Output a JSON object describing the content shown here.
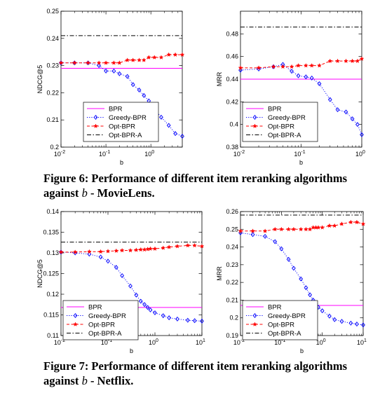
{
  "chart_data": [
    {
      "type": "line",
      "panel": "movielens-ndcg",
      "xlabel": "b",
      "ylabel": "NDCG@5",
      "xscale": "log",
      "xlim": [
        0.01,
        5
      ],
      "ylim": [
        0.2,
        0.25
      ],
      "xticks": [
        {
          "v": 0.01,
          "m": "10",
          "e": "-2"
        },
        {
          "v": 0.1,
          "m": "10",
          "e": "-1"
        },
        {
          "v": 1,
          "m": "10",
          "e": "0"
        }
      ],
      "yticks": [
        {
          "v": 0.2,
          "label": "0.2"
        },
        {
          "v": 0.21,
          "label": "0.21"
        },
        {
          "v": 0.22,
          "label": "0.22"
        },
        {
          "v": 0.23,
          "label": "0.23"
        },
        {
          "v": 0.24,
          "label": "0.24"
        },
        {
          "v": 0.25,
          "label": "0.25"
        }
      ],
      "legend_position": "bottom-left",
      "series": [
        {
          "name": "BPR",
          "x": [
            0.01,
            5
          ],
          "y": [
            0.229,
            0.229
          ]
        },
        {
          "name": "Greedy-BPR",
          "x": [
            0.01,
            0.02,
            0.04,
            0.07,
            0.1,
            0.15,
            0.2,
            0.3,
            0.4,
            0.55,
            0.7,
            0.9,
            1.2,
            1.7,
            2.5,
            3.5,
            5
          ],
          "y": [
            0.231,
            0.231,
            0.231,
            0.23,
            0.228,
            0.228,
            0.227,
            0.226,
            0.223,
            0.221,
            0.219,
            0.217,
            0.214,
            0.211,
            0.208,
            0.205,
            0.204
          ]
        },
        {
          "name": "Opt-BPR",
          "x": [
            0.01,
            0.02,
            0.04,
            0.07,
            0.1,
            0.15,
            0.2,
            0.3,
            0.4,
            0.55,
            0.7,
            0.9,
            1.2,
            1.7,
            2.5,
            3.5,
            5
          ],
          "y": [
            0.231,
            0.231,
            0.231,
            0.231,
            0.231,
            0.231,
            0.231,
            0.232,
            0.232,
            0.232,
            0.232,
            0.233,
            0.233,
            0.233,
            0.234,
            0.234,
            0.234
          ]
        },
        {
          "name": "Opt-BPR-A",
          "x": [
            0.01,
            5
          ],
          "y": [
            0.241,
            0.241
          ]
        }
      ]
    },
    {
      "type": "line",
      "panel": "movielens-mrr",
      "xlabel": "b",
      "ylabel": "MRR",
      "xscale": "log",
      "xlim": [
        0.01,
        1
      ],
      "ylim": [
        0.38,
        0.5
      ],
      "xticks": [
        {
          "v": 0.01,
          "m": "10",
          "e": "-2"
        },
        {
          "v": 0.1,
          "m": "10",
          "e": "-1"
        },
        {
          "v": 1,
          "m": "10",
          "e": "0"
        }
      ],
      "yticks": [
        {
          "v": 0.38,
          "label": "0.38"
        },
        {
          "v": 0.4,
          "label": "0.4"
        },
        {
          "v": 0.42,
          "label": "0.42"
        },
        {
          "v": 0.44,
          "label": "0.44"
        },
        {
          "v": 0.46,
          "label": "0.46"
        },
        {
          "v": 0.48,
          "label": "0.48"
        }
      ],
      "legend_position": "bottom-left",
      "series": [
        {
          "name": "BPR",
          "x": [
            0.01,
            1
          ],
          "y": [
            0.44,
            0.44
          ]
        },
        {
          "name": "Greedy-BPR",
          "x": [
            0.01,
            0.02,
            0.035,
            0.05,
            0.07,
            0.09,
            0.12,
            0.15,
            0.2,
            0.3,
            0.4,
            0.55,
            0.7,
            0.85,
            1
          ],
          "y": [
            0.448,
            0.449,
            0.451,
            0.453,
            0.447,
            0.443,
            0.442,
            0.441,
            0.436,
            0.422,
            0.413,
            0.411,
            0.405,
            0.4,
            0.391
          ]
        },
        {
          "name": "Opt-BPR",
          "x": [
            0.01,
            0.02,
            0.035,
            0.05,
            0.07,
            0.09,
            0.12,
            0.15,
            0.2,
            0.3,
            0.4,
            0.55,
            0.7,
            0.85,
            1
          ],
          "y": [
            0.45,
            0.45,
            0.451,
            0.451,
            0.451,
            0.452,
            0.452,
            0.452,
            0.452,
            0.456,
            0.456,
            0.456,
            0.456,
            0.456,
            0.458
          ]
        },
        {
          "name": "Opt-BPR-A",
          "x": [
            0.01,
            1
          ],
          "y": [
            0.486,
            0.486
          ]
        }
      ]
    },
    {
      "type": "line",
      "panel": "netflix-ndcg",
      "xlabel": "b",
      "ylabel": "NDCG@5",
      "xscale": "log",
      "xlim": [
        0.01,
        10
      ],
      "ylim": [
        0.11,
        0.14
      ],
      "xticks": [
        {
          "v": 0.01,
          "m": "10",
          "e": "-2"
        },
        {
          "v": 0.1,
          "m": "10",
          "e": "-1"
        },
        {
          "v": 1,
          "m": "10",
          "e": "0"
        },
        {
          "v": 10,
          "m": "10",
          "e": "1"
        }
      ],
      "yticks": [
        {
          "v": 0.11,
          "label": "0.11"
        },
        {
          "v": 0.115,
          "label": "0.115"
        },
        {
          "v": 0.12,
          "label": "0.12"
        },
        {
          "v": 0.125,
          "label": "0.125"
        },
        {
          "v": 0.13,
          "label": "0.13"
        },
        {
          "v": 0.135,
          "label": "0.135"
        },
        {
          "v": 0.14,
          "label": "0.14"
        }
      ],
      "legend_position": "bottom-left",
      "series": [
        {
          "name": "BPR",
          "x": [
            0.01,
            10
          ],
          "y": [
            0.1168,
            0.1168
          ]
        },
        {
          "name": "Greedy-BPR",
          "x": [
            0.01,
            0.02,
            0.04,
            0.07,
            0.1,
            0.15,
            0.2,
            0.3,
            0.4,
            0.5,
            0.6,
            0.7,
            0.8,
            1,
            1.5,
            2,
            3,
            5,
            7,
            10
          ],
          "y": [
            0.1302,
            0.13,
            0.1297,
            0.129,
            0.128,
            0.1265,
            0.1245,
            0.122,
            0.1198,
            0.1183,
            0.1175,
            0.1168,
            0.1162,
            0.1155,
            0.1148,
            0.1143,
            0.114,
            0.1137,
            0.1136,
            0.1135
          ]
        },
        {
          "name": "Opt-BPR",
          "x": [
            0.01,
            0.02,
            0.04,
            0.07,
            0.1,
            0.15,
            0.2,
            0.3,
            0.4,
            0.5,
            0.6,
            0.7,
            0.8,
            1,
            1.5,
            2,
            3,
            5,
            7,
            10
          ],
          "y": [
            0.1302,
            0.1302,
            0.1303,
            0.1303,
            0.1304,
            0.1305,
            0.1306,
            0.1306,
            0.1307,
            0.1308,
            0.1308,
            0.1309,
            0.131,
            0.131,
            0.1312,
            0.1314,
            0.1316,
            0.1318,
            0.1318,
            0.1316
          ]
        },
        {
          "name": "Opt-BPR-A",
          "x": [
            0.01,
            10
          ],
          "y": [
            0.1326,
            0.1326
          ]
        }
      ]
    },
    {
      "type": "line",
      "panel": "netflix-mrr",
      "xlabel": "b",
      "ylabel": "MRR",
      "xscale": "log",
      "xlim": [
        0.01,
        10
      ],
      "ylim": [
        0.19,
        0.26
      ],
      "xticks": [
        {
          "v": 0.01,
          "m": "10",
          "e": "-2"
        },
        {
          "v": 0.1,
          "m": "10",
          "e": "-1"
        },
        {
          "v": 1,
          "m": "10",
          "e": "0"
        },
        {
          "v": 10,
          "m": "10",
          "e": "1"
        }
      ],
      "yticks": [
        {
          "v": 0.19,
          "label": "0.19"
        },
        {
          "v": 0.2,
          "label": "0.2"
        },
        {
          "v": 0.21,
          "label": "0.21"
        },
        {
          "v": 0.22,
          "label": "0.22"
        },
        {
          "v": 0.23,
          "label": "0.23"
        },
        {
          "v": 0.24,
          "label": "0.24"
        },
        {
          "v": 0.25,
          "label": "0.25"
        },
        {
          "v": 0.26,
          "label": "0.26"
        }
      ],
      "legend_position": "bottom-left",
      "series": [
        {
          "name": "BPR",
          "x": [
            0.01,
            10
          ],
          "y": [
            0.207,
            0.207
          ]
        },
        {
          "name": "Greedy-BPR",
          "x": [
            0.01,
            0.02,
            0.04,
            0.07,
            0.1,
            0.15,
            0.2,
            0.3,
            0.4,
            0.5,
            0.6,
            0.7,
            0.8,
            1,
            1.5,
            2,
            3,
            5,
            7,
            10
          ],
          "y": [
            0.248,
            0.247,
            0.246,
            0.243,
            0.239,
            0.233,
            0.228,
            0.222,
            0.217,
            0.213,
            0.21,
            0.208,
            0.206,
            0.204,
            0.201,
            0.199,
            0.198,
            0.197,
            0.1965,
            0.196
          ]
        },
        {
          "name": "Opt-BPR",
          "x": [
            0.01,
            0.02,
            0.04,
            0.07,
            0.1,
            0.15,
            0.2,
            0.3,
            0.4,
            0.5,
            0.6,
            0.7,
            0.8,
            1,
            1.5,
            2,
            3,
            5,
            7,
            10
          ],
          "y": [
            0.249,
            0.249,
            0.249,
            0.25,
            0.25,
            0.25,
            0.25,
            0.25,
            0.25,
            0.25,
            0.251,
            0.251,
            0.251,
            0.251,
            0.252,
            0.252,
            0.253,
            0.254,
            0.254,
            0.253
          ]
        },
        {
          "name": "Opt-BPR-A",
          "x": [
            0.01,
            10
          ],
          "y": [
            0.258,
            0.258
          ]
        }
      ]
    }
  ],
  "series_styles": {
    "BPR": {
      "color": "#ff00ff",
      "line": "solid",
      "marker": "none"
    },
    "Greedy-BPR": {
      "color": "#0000ff",
      "line": "dotted",
      "marker": "diamond"
    },
    "Opt-BPR": {
      "color": "#ff0000",
      "line": "dashed",
      "marker": "star"
    },
    "Opt-BPR-A": {
      "color": "#000000",
      "line": "dashdot",
      "marker": "none"
    }
  },
  "captions": {
    "fig6": {
      "before": "Figure 6:  Performance of different item reranking algorithms against ",
      "var": "b",
      "after": " - MovieLens."
    },
    "fig7": {
      "before": "Figure 7:  Performance of different item reranking algorithms against ",
      "var": "b",
      "after": " - Netflix."
    }
  }
}
